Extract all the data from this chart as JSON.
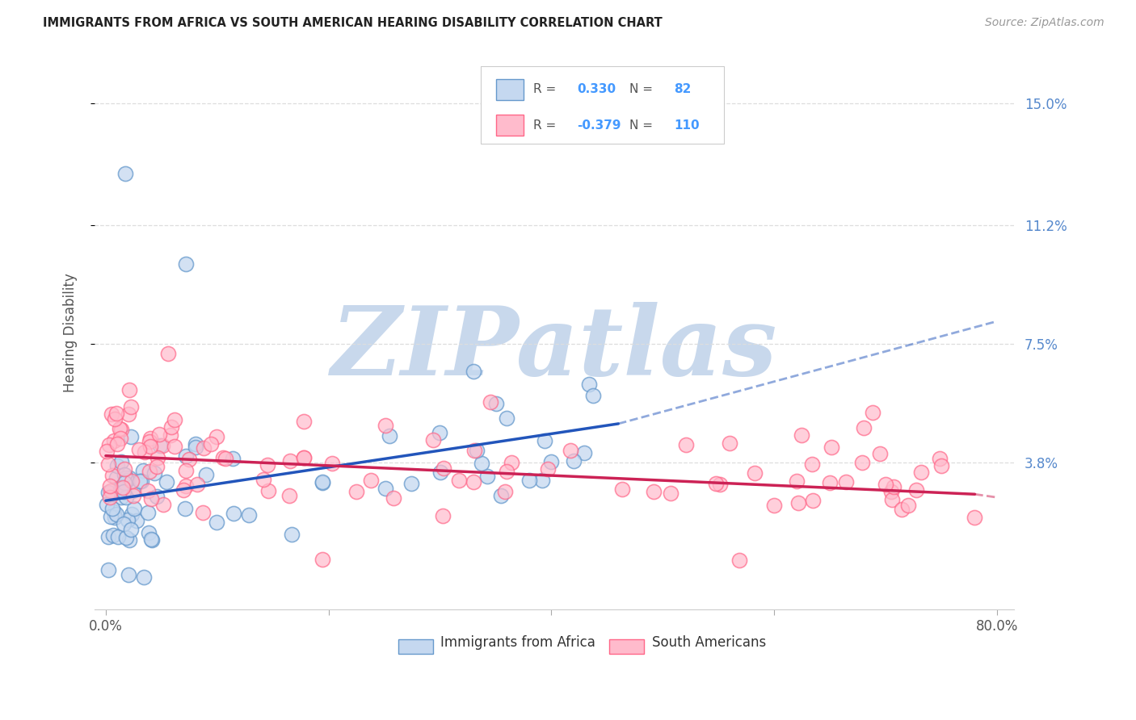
{
  "title": "IMMIGRANTS FROM AFRICA VS SOUTH AMERICAN HEARING DISABILITY CORRELATION CHART",
  "source": "Source: ZipAtlas.com",
  "xlabel_africa": "Immigrants from Africa",
  "xlabel_sa": "South Americans",
  "ylabel": "Hearing Disability",
  "xlim": [
    -0.01,
    0.815
  ],
  "ylim": [
    -0.008,
    0.165
  ],
  "xticks": [
    0.0,
    0.2,
    0.4,
    0.6,
    0.8
  ],
  "xtick_labels": [
    "0.0%",
    "",
    "",
    "",
    "80.0%"
  ],
  "ytick_right": [
    0.038,
    0.075,
    0.112,
    0.15
  ],
  "ytick_right_labels": [
    "3.8%",
    "7.5%",
    "11.2%",
    "15.0%"
  ],
  "africa_R": 0.33,
  "africa_N": 82,
  "sa_R": -0.379,
  "sa_N": 110,
  "africa_dot_face": "#C5D8F0",
  "africa_dot_edge": "#6699CC",
  "sa_dot_face": "#FFBBCC",
  "sa_dot_edge": "#FF6688",
  "africa_line_color": "#2255BB",
  "sa_line_color": "#CC2255",
  "watermark_text": "ZIPatlas",
  "watermark_color": "#C8D8EC",
  "legend_box_edge": "#CCCCCC",
  "legend_R_N_color": "#4499FF",
  "legend_label_color": "#555555",
  "right_tick_color": "#5588CC",
  "title_color": "#222222",
  "source_color": "#999999",
  "ylabel_color": "#555555",
  "xtick_color": "#555555",
  "grid_color": "#DDDDDD",
  "bottom_spine_color": "#CCCCCC"
}
